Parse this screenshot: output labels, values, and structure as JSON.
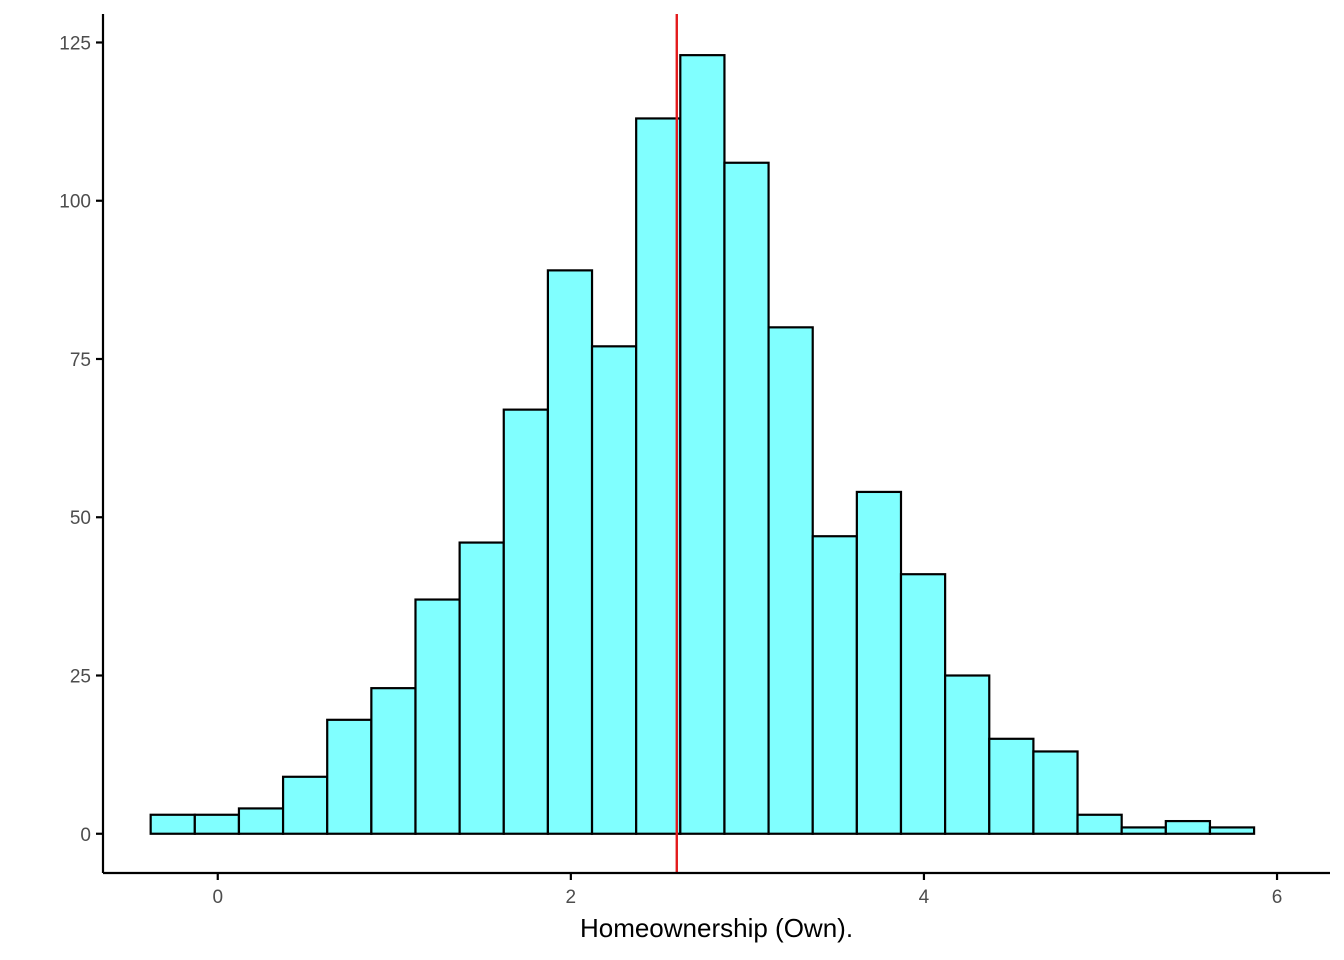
{
  "chart_data": {
    "type": "bar",
    "xlabel": "Homeownership (Own).",
    "ylabel": "",
    "title": "",
    "xlim": [
      -0.65,
      6.3
    ],
    "ylim": [
      -6.2,
      129.5
    ],
    "xticks": [
      0,
      2,
      4,
      6
    ],
    "yticks": [
      0,
      25,
      50,
      75,
      100,
      125
    ],
    "grid": false,
    "bin_width": 0.25,
    "bins": [
      {
        "x0": -0.38,
        "x1": -0.13,
        "count": 3
      },
      {
        "x0": -0.13,
        "x1": 0.12,
        "count": 3
      },
      {
        "x0": 0.12,
        "x1": 0.37,
        "count": 4
      },
      {
        "x0": 0.37,
        "x1": 0.62,
        "count": 9
      },
      {
        "x0": 0.62,
        "x1": 0.87,
        "count": 18
      },
      {
        "x0": 0.87,
        "x1": 1.12,
        "count": 23
      },
      {
        "x0": 1.12,
        "x1": 1.37,
        "count": 37
      },
      {
        "x0": 1.37,
        "x1": 1.62,
        "count": 46
      },
      {
        "x0": 1.62,
        "x1": 1.87,
        "count": 67
      },
      {
        "x0": 1.87,
        "x1": 2.12,
        "count": 89
      },
      {
        "x0": 2.12,
        "x1": 2.37,
        "count": 77
      },
      {
        "x0": 2.37,
        "x1": 2.62,
        "count": 113
      },
      {
        "x0": 2.62,
        "x1": 2.87,
        "count": 123
      },
      {
        "x0": 2.87,
        "x1": 3.12,
        "count": 106
      },
      {
        "x0": 3.12,
        "x1": 3.37,
        "count": 80
      },
      {
        "x0": 3.37,
        "x1": 3.62,
        "count": 47
      },
      {
        "x0": 3.62,
        "x1": 3.87,
        "count": 54
      },
      {
        "x0": 3.87,
        "x1": 4.12,
        "count": 41
      },
      {
        "x0": 4.12,
        "x1": 4.37,
        "count": 25
      },
      {
        "x0": 4.37,
        "x1": 4.62,
        "count": 15
      },
      {
        "x0": 4.62,
        "x1": 4.87,
        "count": 13
      },
      {
        "x0": 4.87,
        "x1": 5.12,
        "count": 3
      },
      {
        "x0": 5.12,
        "x1": 5.37,
        "count": 1
      },
      {
        "x0": 5.37,
        "x1": 5.62,
        "count": 2
      },
      {
        "x0": 5.62,
        "x1": 5.87,
        "count": 1
      }
    ],
    "vline": {
      "x": 2.6,
      "color": "#e31a1c"
    },
    "colors": {
      "bar_fill": "#80ffff",
      "bar_stroke": "#000000",
      "axis": "#000000",
      "tick_text": "#4d4d4d"
    }
  }
}
